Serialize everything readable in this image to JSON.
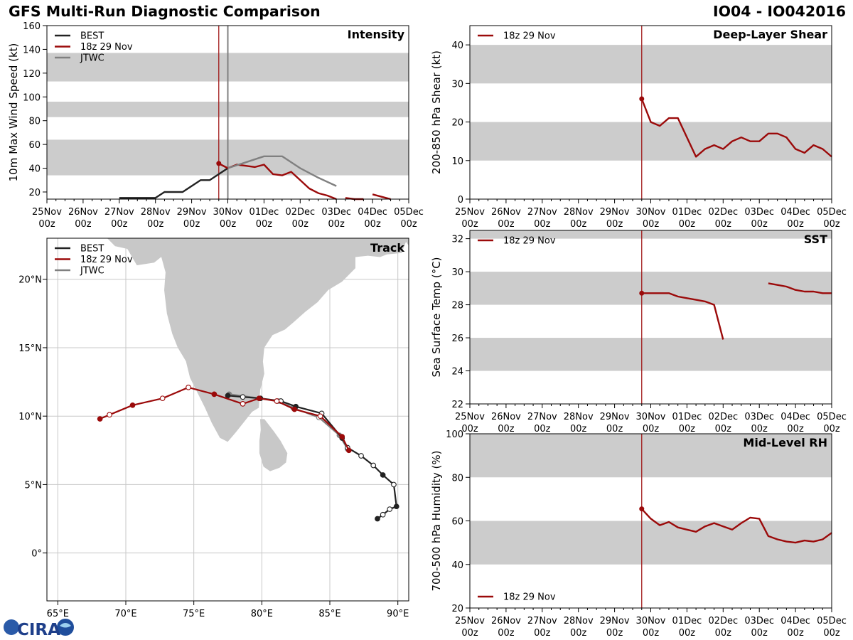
{
  "header": {
    "title": "GFS Multi-Run Diagnostic Comparison",
    "storm": "IO04 - IO042016"
  },
  "colors": {
    "best": "#222222",
    "run": "#9b0a0a",
    "jtwc": "#808080",
    "band": "#cccccc",
    "grid": "#c8c8c8",
    "land": "#c8c8c8"
  },
  "time_axis": {
    "tick_days": [
      0,
      1,
      2,
      3,
      4,
      5,
      6,
      7,
      8,
      9,
      10
    ],
    "tick_labels": [
      [
        "25Nov",
        "00z"
      ],
      [
        "26Nov",
        "00z"
      ],
      [
        "27Nov",
        "00z"
      ],
      [
        "28Nov",
        "00z"
      ],
      [
        "29Nov",
        "00z"
      ],
      [
        "30Nov",
        "00z"
      ],
      [
        "01Dec",
        "00z"
      ],
      [
        "02Dec",
        "00z"
      ],
      [
        "03Dec",
        "00z"
      ],
      [
        "04Dec",
        "00z"
      ],
      [
        "05Dec",
        "00z"
      ]
    ],
    "range": [
      0,
      10
    ]
  },
  "chart_data": [
    {
      "id": "intensity",
      "type": "line",
      "title": "Intensity",
      "ylabel": "10m Max Wind Speed (kt)",
      "xlabel": "",
      "ylim": [
        14,
        160
      ],
      "yticks": [
        20,
        40,
        60,
        80,
        100,
        120,
        140,
        160
      ],
      "bands": [
        [
          34,
          64
        ],
        [
          83,
          96
        ],
        [
          113,
          137
        ]
      ],
      "vlines": [
        {
          "x": 5.0,
          "color": "#808080"
        }
      ],
      "init_time": 4.75,
      "legend": [
        "BEST",
        "18z 29 Nov",
        "JTWC"
      ],
      "series": [
        {
          "name": "BEST",
          "x": [
            2.0,
            2.25,
            2.5,
            2.75,
            3.0,
            3.25,
            3.5,
            3.75,
            4.0,
            4.25,
            4.5,
            4.75,
            5.0
          ],
          "values": [
            15,
            15,
            15,
            15,
            15,
            20,
            20,
            20,
            25,
            30,
            30,
            35,
            40
          ]
        },
        {
          "name": "18z 29 Nov",
          "segments": [
            {
              "x": [
                4.75,
                5.0,
                5.25,
                5.5,
                5.75,
                6.0,
                6.25,
                6.5,
                6.75,
                7.0,
                7.25,
                7.5,
                7.75,
                8.0
              ],
              "values": [
                44,
                40,
                43,
                42,
                41,
                43,
                35,
                34,
                37,
                30,
                23,
                19,
                17,
                12
              ]
            },
            {
              "x": [
                8.25,
                8.5,
                8.75
              ],
              "values": [
                15,
                14,
                12
              ]
            },
            {
              "x": [
                9.0,
                9.25,
                9.5
              ],
              "values": [
                18,
                16,
                13
              ]
            }
          ]
        },
        {
          "name": "JTWC",
          "x": [
            5.0,
            5.5,
            6.0,
            6.5,
            7.0,
            7.5,
            8.0
          ],
          "values": [
            40,
            45,
            50,
            50,
            40,
            32,
            25
          ]
        }
      ]
    },
    {
      "id": "shear",
      "type": "line",
      "title": "Deep-Layer Shear",
      "ylabel": "200-850 hPa Shear (kt)",
      "xlabel": "",
      "ylim": [
        0,
        45
      ],
      "yticks": [
        0,
        10,
        20,
        30,
        40
      ],
      "bands": [
        [
          10,
          20
        ],
        [
          30,
          40
        ]
      ],
      "vlines": [],
      "init_time": 4.75,
      "legend": [
        "18z 29 Nov"
      ],
      "series": [
        {
          "name": "18z 29 Nov",
          "x": [
            4.75,
            5.0,
            5.25,
            5.5,
            5.75,
            6.0,
            6.25,
            6.5,
            6.75,
            7.0,
            7.25,
            7.5,
            7.75,
            8.0,
            8.25,
            8.5,
            8.75,
            9.0,
            9.25,
            9.5,
            9.75,
            10.0
          ],
          "values": [
            26,
            20,
            19,
            21,
            21,
            16,
            11,
            13,
            14,
            13,
            15,
            16,
            15,
            15,
            17,
            17,
            16,
            13,
            12,
            14,
            13,
            11
          ]
        }
      ]
    },
    {
      "id": "sst",
      "type": "line",
      "title": "SST",
      "ylabel": "Sea Surface Temp (°C)",
      "xlabel": "",
      "ylim": [
        22,
        32.5
      ],
      "yticks": [
        22,
        24,
        26,
        28,
        30,
        32
      ],
      "bands": [
        [
          24,
          26
        ],
        [
          28,
          30
        ],
        [
          32,
          32.5
        ]
      ],
      "vlines": [],
      "init_time": 4.75,
      "legend": [
        "18z 29 Nov"
      ],
      "series": [
        {
          "name": "18z 29 Nov",
          "segments": [
            {
              "x": [
                4.75,
                5.0,
                5.25,
                5.5,
                5.75,
                6.0,
                6.25,
                6.5,
                6.75,
                7.0
              ],
              "values": [
                28.7,
                28.7,
                28.7,
                28.7,
                28.5,
                28.4,
                28.3,
                28.2,
                28.0,
                25.9
              ]
            },
            {
              "x": [
                8.25,
                8.5,
                8.75,
                9.0,
                9.25,
                9.5,
                9.75,
                10.0
              ],
              "values": [
                29.3,
                29.2,
                29.1,
                28.9,
                28.8,
                28.8,
                28.7,
                28.7
              ]
            }
          ]
        }
      ]
    },
    {
      "id": "rh",
      "type": "line",
      "title": "Mid-Level RH",
      "ylabel": "700-500 hPa Humidity (%)",
      "xlabel": "",
      "ylim": [
        20,
        100
      ],
      "yticks": [
        20,
        40,
        60,
        80,
        100
      ],
      "bands": [
        [
          40,
          60
        ],
        [
          80,
          100
        ]
      ],
      "vlines": [],
      "init_time": 4.75,
      "legend": [
        "18z 29 Nov"
      ],
      "series": [
        {
          "name": "18z 29 Nov",
          "x": [
            4.75,
            5.0,
            5.25,
            5.5,
            5.75,
            6.0,
            6.25,
            6.5,
            6.75,
            7.0,
            7.25,
            7.5,
            7.75,
            8.0,
            8.25,
            8.5,
            8.75,
            9.0,
            9.25,
            9.5,
            9.75,
            10.0
          ],
          "values": [
            65.5,
            61,
            58,
            59.5,
            57,
            56,
            55,
            57.5,
            59,
            57.5,
            56,
            59,
            61.5,
            61,
            53,
            51.5,
            50.5,
            50,
            51,
            50.5,
            51.5,
            54.5
          ]
        }
      ]
    },
    {
      "id": "track",
      "type": "scatter",
      "title": "Track",
      "xlabel": "",
      "ylabel": "",
      "xlim": [
        64.2,
        90.8
      ],
      "ylim": [
        -3.5,
        23.0
      ],
      "xticks": [
        65,
        70,
        75,
        80,
        85,
        90
      ],
      "xtick_labels": [
        "65°E",
        "70°E",
        "75°E",
        "80°E",
        "85°E",
        "90°E"
      ],
      "yticks": [
        0,
        5,
        10,
        15,
        20
      ],
      "ytick_labels": [
        "0°",
        "5°N",
        "10°N",
        "15°N",
        "20°N"
      ],
      "legend": [
        "BEST",
        "18z 29 Nov",
        "JTWC"
      ],
      "series": [
        {
          "name": "BEST",
          "lon": [
            88.5,
            88.9,
            89.4,
            89.9,
            89.7,
            88.9,
            88.2,
            87.3,
            86.3,
            85.9,
            84.4,
            82.5,
            81.4,
            79.9,
            78.6,
            77.5
          ],
          "lat": [
            2.5,
            2.8,
            3.2,
            3.4,
            5.0,
            5.7,
            6.4,
            7.1,
            7.7,
            8.4,
            10.2,
            10.7,
            11.1,
            11.3,
            11.4,
            11.5
          ],
          "filled": [
            1,
            0,
            0,
            1,
            0,
            1,
            0,
            0,
            0,
            1,
            0,
            1,
            0,
            1,
            0,
            1
          ]
        },
        {
          "name": "18z 29 Nov",
          "lon": [
            86.4,
            85.9,
            84.3,
            82.4,
            81.1,
            79.8,
            78.6,
            76.5,
            74.6,
            72.7,
            70.5,
            68.8,
            68.1
          ],
          "lat": [
            7.5,
            8.5,
            10.0,
            10.5,
            11.1,
            11.3,
            10.9,
            11.6,
            12.1,
            11.3,
            10.8,
            10.1,
            9.8
          ],
          "filled": [
            1,
            1,
            0,
            1,
            0,
            1,
            0,
            1,
            0,
            0,
            1,
            0,
            1
          ]
        },
        {
          "name": "JTWC",
          "lon": [
            86.3,
            85.7,
            84.2,
            82.3,
            81.2,
            79.9,
            77.6
          ],
          "lat": [
            7.6,
            8.6,
            9.9,
            10.6,
            11.1,
            11.3,
            11.6
          ],
          "filled": [
            1,
            1,
            0,
            1,
            0,
            1,
            1
          ]
        }
      ]
    }
  ],
  "logo": {
    "text": "CIRA"
  }
}
